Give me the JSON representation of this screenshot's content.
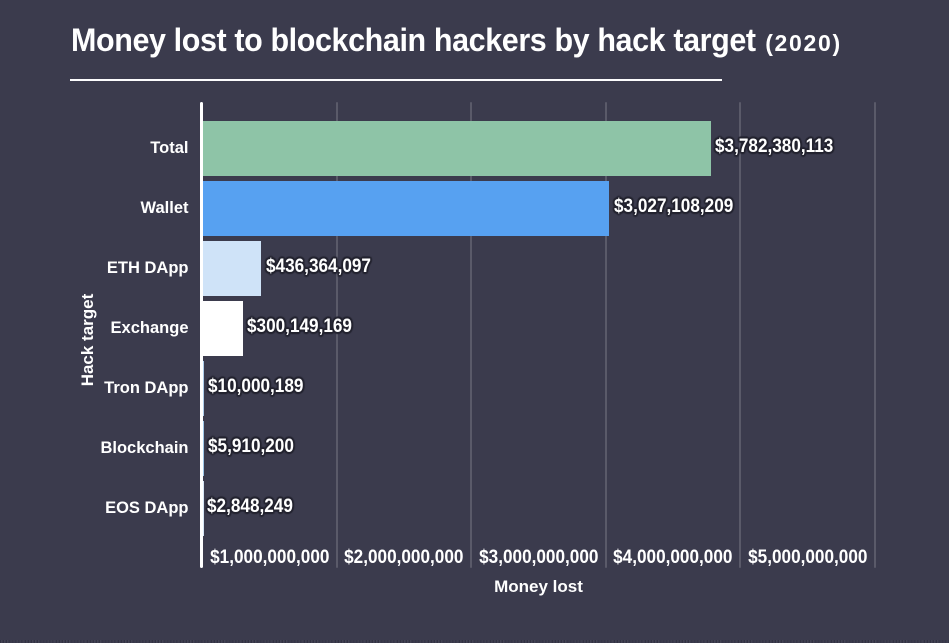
{
  "page": {
    "background_color": "#3b3b4d",
    "text_color": "#ffffff"
  },
  "header": {
    "title": "Money lost to blockchain hackers by hack target",
    "title_suffix": "(2020)"
  },
  "chart_data": {
    "type": "bar",
    "orientation": "horizontal",
    "title": "Money lost to blockchain hackers by hack target (2020)",
    "xlabel": "Money lost",
    "ylabel": "Hack target",
    "categories": [
      "Total",
      "Wallet",
      "ETH DApp",
      "Exchange",
      "Tron DApp",
      "Blockchain",
      "EOS DApp"
    ],
    "values": [
      3782380113,
      3027108209,
      436364097,
      300149169,
      10000189,
      5910200,
      2848249
    ],
    "value_labels": [
      "$3,782,380,113",
      "$3,027,108,209",
      "$436,364,097",
      "$300,149,169",
      "$10,000,189",
      "$5,910,200",
      "$2,848,249"
    ],
    "bar_colors": [
      "#8ec4a7",
      "#57a1f1",
      "#cfe3f8",
      "#ffffff",
      "#aecdea",
      "#9fc7e8",
      "#d5e5f5"
    ],
    "x_ticks": [
      1000000000,
      2000000000,
      3000000000,
      4000000000,
      5000000000
    ],
    "x_tick_labels": [
      "$1,000,000,000",
      "$2,000,000,000",
      "$3,000,000,000",
      "$4,000,000,000",
      "$5,000,000,000"
    ],
    "xlim": [
      0,
      5560000000
    ],
    "grid": true,
    "legend": false,
    "colors": {
      "background": "#3b3b4d",
      "gridline": "rgba(255,255,255,0.16)",
      "axis_line": "#ffffff",
      "label_outline": "#23232f"
    }
  }
}
